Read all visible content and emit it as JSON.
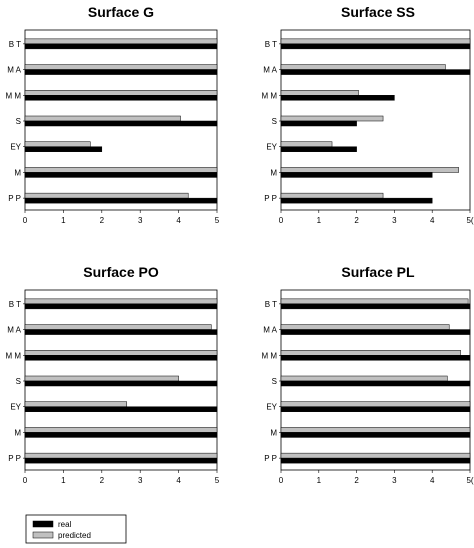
{
  "chart_data": [
    {
      "type": "bar",
      "orientation": "horizontal",
      "title": "Surface G",
      "categories": [
        "B T",
        "M A",
        "M M",
        "S",
        "EY",
        "M",
        "P P"
      ],
      "series": [
        {
          "name": "real",
          "color": "#000000",
          "values": [
            5,
            5,
            5,
            5,
            2,
            5,
            5
          ]
        },
        {
          "name": "predicted",
          "color": "#c0c0c0",
          "values": [
            5,
            5,
            5,
            4.05,
            1.7,
            5,
            4.25
          ]
        }
      ],
      "xlim": [
        0,
        5
      ],
      "xticks": [
        "0",
        "1",
        "2",
        "3",
        "4",
        "5"
      ]
    },
    {
      "type": "bar",
      "orientation": "horizontal",
      "title": "Surface SS",
      "categories": [
        "B T",
        "M A",
        "M M",
        "S",
        "EY",
        "M",
        "P P"
      ],
      "series": [
        {
          "name": "real",
          "color": "#000000",
          "values": [
            5,
            5,
            3,
            2,
            2,
            4,
            4
          ]
        },
        {
          "name": "predicted",
          "color": "#c0c0c0",
          "values": [
            5,
            4.35,
            2.05,
            2.7,
            1.35,
            4.7,
            2.7
          ]
        }
      ],
      "xlim": [
        0,
        5
      ],
      "xticks": [
        "0",
        "1",
        "2",
        "3",
        "4",
        "5("
      ]
    },
    {
      "type": "bar",
      "orientation": "horizontal",
      "title": "Surface PO",
      "categories": [
        "B T",
        "M A",
        "M M",
        "S",
        "EY",
        "M",
        "P P"
      ],
      "series": [
        {
          "name": "real",
          "color": "#000000",
          "values": [
            5,
            5,
            5,
            5,
            5,
            5,
            5
          ]
        },
        {
          "name": "predicted",
          "color": "#c0c0c0",
          "values": [
            5,
            4.85,
            5,
            4,
            2.65,
            5,
            5
          ]
        }
      ],
      "xlim": [
        0,
        5
      ],
      "xticks": [
        "0",
        "1",
        "2",
        "3",
        "4",
        "5"
      ]
    },
    {
      "type": "bar",
      "orientation": "horizontal",
      "title": "Surface PL",
      "categories": [
        "B T",
        "M A",
        "M M",
        "S",
        "EY",
        "M",
        "P P"
      ],
      "series": [
        {
          "name": "real",
          "color": "#000000",
          "values": [
            5,
            5,
            5,
            5,
            5,
            5,
            5
          ]
        },
        {
          "name": "predicted",
          "color": "#c0c0c0",
          "values": [
            4.95,
            4.45,
            4.75,
            4.4,
            5,
            5,
            5
          ]
        }
      ],
      "xlim": [
        0,
        5
      ],
      "xticks": [
        "0",
        "1",
        "2",
        "3",
        "4",
        "5("
      ]
    }
  ],
  "legend": {
    "position": "bottom-left",
    "items": [
      {
        "label": "real",
        "color": "#000000"
      },
      {
        "label": "predicted",
        "color": "#c0c0c0"
      }
    ]
  }
}
